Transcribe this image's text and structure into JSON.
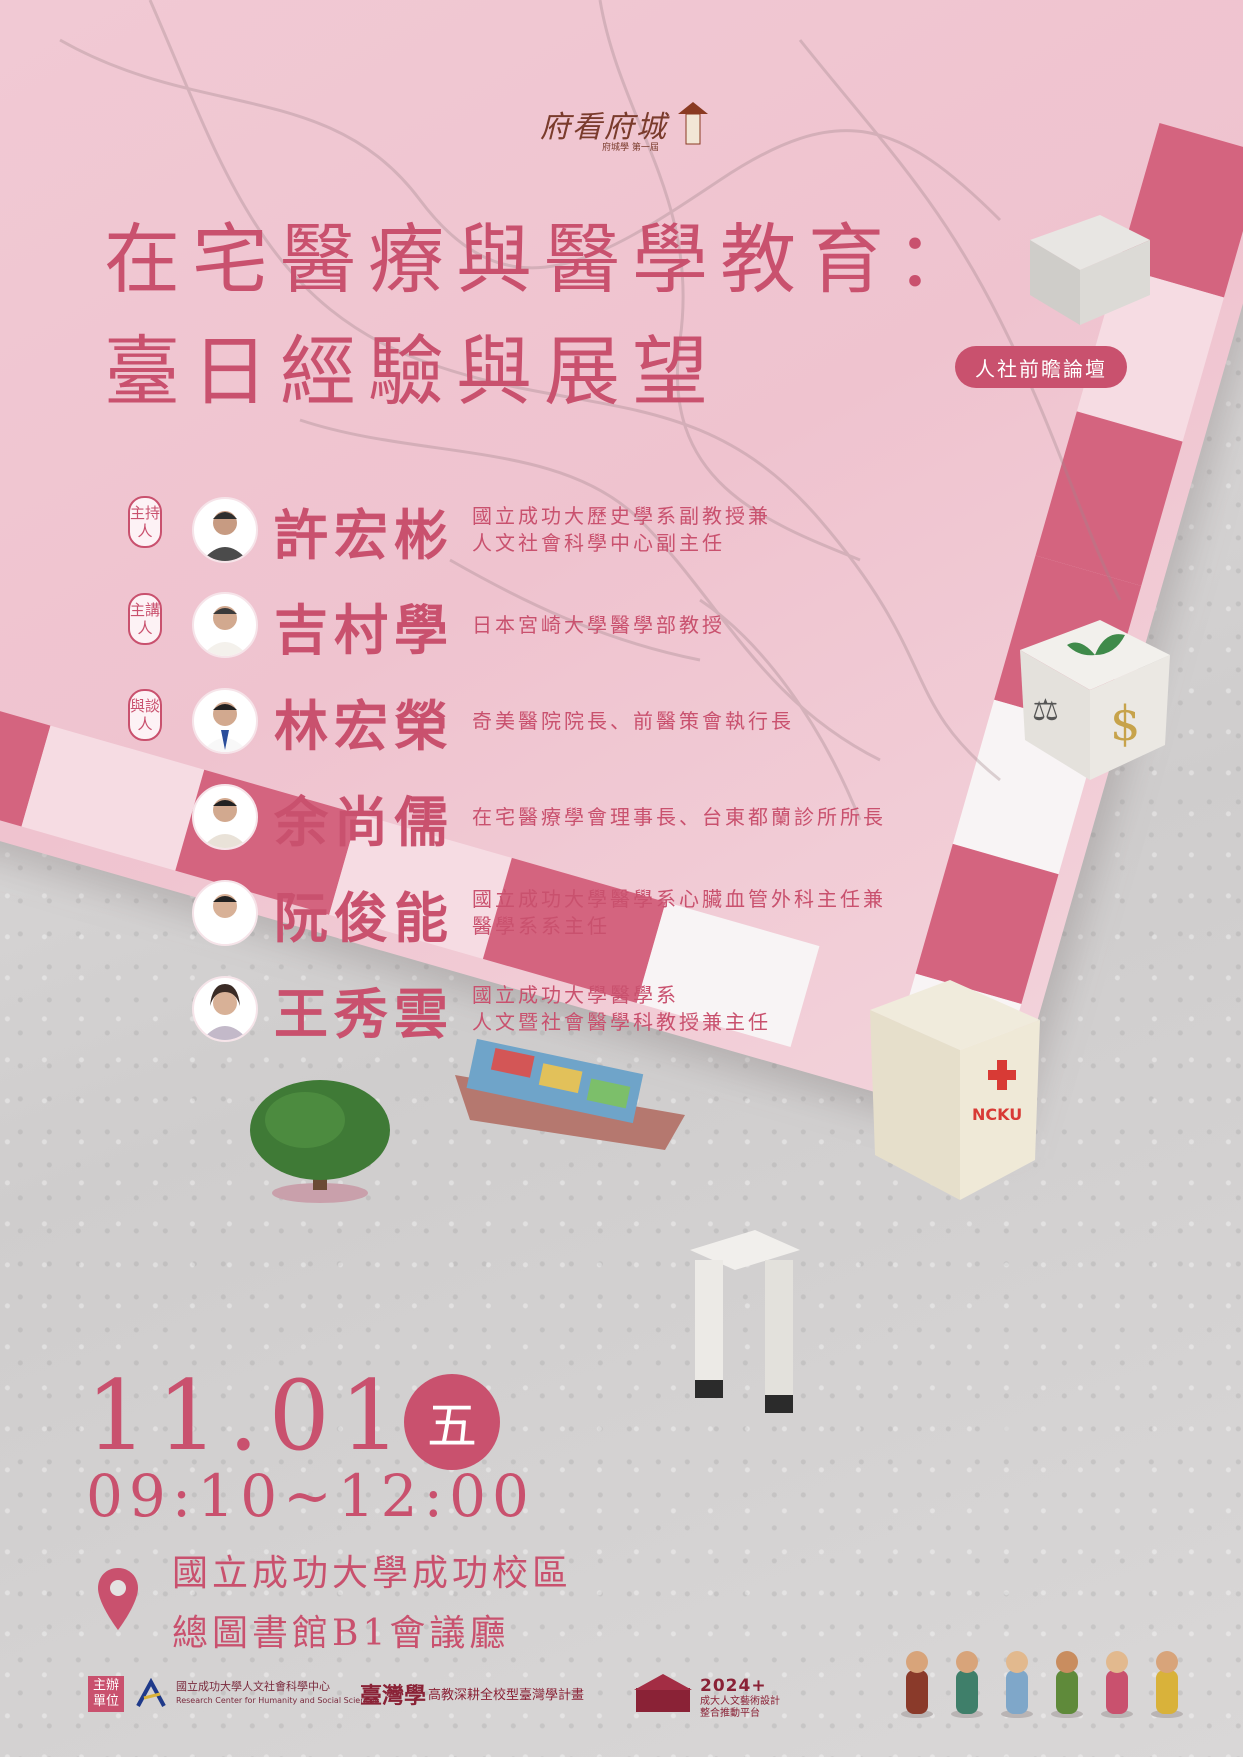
{
  "logo": {
    "text": "府看府城",
    "sub": "府城學 第一屆"
  },
  "title": {
    "line1": "在宅醫療與醫學教育：",
    "line2": "臺日經驗與展望"
  },
  "forum_badge": "人社前瞻論壇",
  "roles": {
    "host": "主持人",
    "keynote": "主講人",
    "panel": "與談人"
  },
  "speakers": [
    {
      "name": "許宏彬",
      "desc": [
        "國立成功大歷史學系副教授兼",
        "人文社會科學中心副主任"
      ]
    },
    {
      "name": "吉村學",
      "desc": [
        "日本宮崎大學醫學部教授"
      ]
    },
    {
      "name": "林宏榮",
      "desc": [
        "奇美醫院院長、前醫策會執行長"
      ]
    },
    {
      "name": "余尚儒",
      "desc": [
        "在宅醫療學會理事長、台東都蘭診所所長"
      ]
    },
    {
      "name": "阮俊能",
      "desc": [
        "國立成功大學醫學系心臟血管外科主任兼",
        "醫學系系主任"
      ]
    },
    {
      "name": "王秀雲",
      "desc": [
        "國立成功大學醫學系",
        "人文暨社會醫學科教授兼主任"
      ]
    }
  ],
  "event": {
    "date": "11.01",
    "weekday": "五",
    "time": "09:10~12:00",
    "venue_line1": "國立成功大學成功校區",
    "venue_line2": "總圖書館B1會議廳"
  },
  "footer": {
    "organizer_label": "主辦單位",
    "org1_cn": "國立成功大學人文社會科學中心",
    "org1_en": "Research Center for Humanity and Social Sciences",
    "org2_logo": "臺灣學",
    "org2_text": "高教深耕全校型臺灣學計畫",
    "org3_year": "2024+",
    "org3_line1": "成大人文藝術設計",
    "org3_line2": "整合推動平台"
  },
  "colors": {
    "accent": "#c9516e",
    "board": "#efc3cf",
    "tile": "#d4647f",
    "background": "#d8d6d6"
  },
  "icons": [
    "location-pin-icon",
    "dice-icon",
    "hospital-icon",
    "tree-icon",
    "ship-icon",
    "gate-icon",
    "tower-icon"
  ]
}
